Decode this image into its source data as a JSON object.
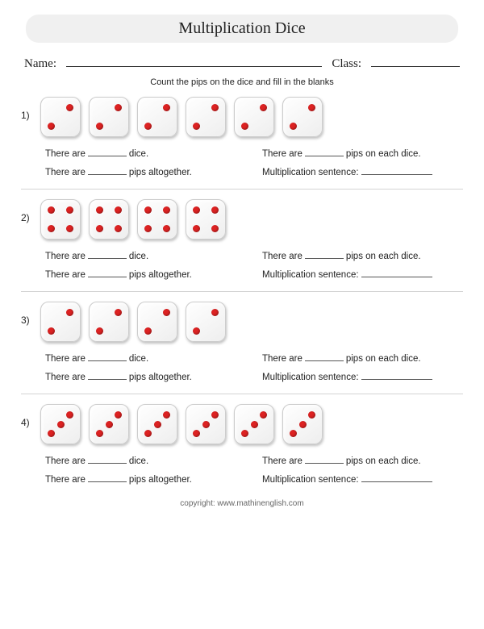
{
  "title": "Multiplication Dice",
  "name_label": "Name:",
  "class_label": "Class:",
  "instructions": "Count the pips on the dice and fill in the blanks",
  "sentences": {
    "dice_count_pre": "There are",
    "dice_count_post": "dice.",
    "pips_each_pre": "There are",
    "pips_each_post": "pips on each dice.",
    "pips_total_pre": "There are",
    "pips_total_post": "pips altogether.",
    "mult_sentence": "Multiplication sentence:"
  },
  "problems": [
    {
      "number": "1)",
      "dice_count": 6,
      "pips_per_die": 2,
      "pip_layout": "2"
    },
    {
      "number": "2)",
      "dice_count": 4,
      "pips_per_die": 4,
      "pip_layout": "4"
    },
    {
      "number": "3)",
      "dice_count": 4,
      "pips_per_die": 2,
      "pip_layout": "2"
    },
    {
      "number": "4)",
      "dice_count": 6,
      "pips_per_die": 3,
      "pip_layout": "3"
    }
  ],
  "pip_positions": {
    "2": [
      "p-tr",
      "p-bl"
    ],
    "3": [
      "p-tr",
      "p-mc",
      "p-bl"
    ],
    "4": [
      "p-tl",
      "p-tr",
      "p-bl",
      "p-br"
    ]
  },
  "style": {
    "pip_color": "#dd2222",
    "die_bg": "#f7f7f7",
    "die_border": "#cccccc",
    "text_color": "#222222",
    "title_bg": "#f0f0f0"
  },
  "copyright": "copyright:   www.mathinenglish.com"
}
